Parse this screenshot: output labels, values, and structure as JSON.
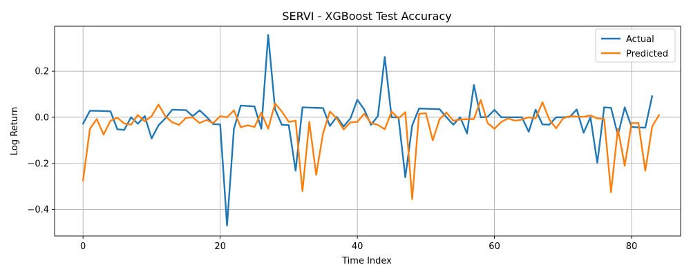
{
  "chart_data": {
    "type": "line",
    "title": "SERVI - XGBoost Test Accuracy",
    "xlabel": "Time Index",
    "ylabel": "Log Return",
    "xlim": [
      -4.15,
      87.15
    ],
    "ylim": [
      -0.515,
      0.395
    ],
    "xticks": [
      0,
      20,
      40,
      60,
      80
    ],
    "yticks": [
      -0.4,
      -0.2,
      0.0,
      0.2
    ],
    "ytick_labels": [
      "−0.4",
      "−0.2",
      "0.0",
      "0.2"
    ],
    "grid": true,
    "legend_position": "top-right",
    "series": [
      {
        "name": "Actual",
        "color": "#1f77b4",
        "values": [
          -0.028,
          0.028,
          0.028,
          0.027,
          0.026,
          -0.052,
          -0.055,
          0.0,
          -0.028,
          0.005,
          -0.092,
          -0.035,
          -0.005,
          0.033,
          0.032,
          0.031,
          0.005,
          0.03,
          0.002,
          -0.03,
          -0.031,
          -0.47,
          -0.05,
          0.051,
          0.049,
          0.047,
          -0.05,
          0.357,
          0.035,
          -0.033,
          -0.034,
          -0.232,
          0.043,
          0.042,
          0.041,
          0.04,
          -0.038,
          0.002,
          -0.04,
          -0.005,
          0.076,
          0.034,
          -0.033,
          0.005,
          0.262,
          0.0,
          0.0,
          -0.26,
          -0.035,
          0.038,
          0.037,
          0.036,
          0.035,
          0.0,
          -0.032,
          0.0,
          -0.07,
          0.14,
          0.0,
          0.002,
          0.032,
          0.0,
          0.0,
          0.0,
          0.0,
          -0.063,
          0.033,
          -0.031,
          -0.032,
          0.0,
          0.0,
          0.002,
          0.034,
          -0.067,
          0.0,
          -0.198,
          0.043,
          0.041,
          -0.078,
          0.043,
          -0.042,
          -0.044,
          -0.045,
          0.092
        ]
      },
      {
        "name": "Predicted",
        "color": "#ff7f0e",
        "values": [
          -0.275,
          -0.05,
          -0.008,
          -0.075,
          -0.015,
          -0.002,
          -0.027,
          -0.032,
          0.01,
          -0.018,
          0.005,
          0.055,
          0.005,
          -0.022,
          -0.033,
          -0.003,
          0.0,
          -0.025,
          -0.012,
          -0.025,
          0.005,
          0.0,
          0.03,
          -0.043,
          -0.035,
          -0.042,
          0.02,
          -0.05,
          0.06,
          0.025,
          -0.02,
          -0.015,
          -0.32,
          -0.02,
          -0.25,
          -0.07,
          0.025,
          -0.005,
          -0.053,
          -0.022,
          -0.02,
          0.015,
          -0.025,
          -0.033,
          -0.052,
          0.025,
          -0.005,
          0.022,
          -0.355,
          0.015,
          0.018,
          -0.1,
          -0.008,
          0.02,
          -0.015,
          -0.01,
          -0.008,
          -0.008,
          0.075,
          -0.025,
          -0.05,
          -0.02,
          -0.005,
          -0.015,
          -0.01,
          0.0,
          -0.005,
          0.065,
          -0.01,
          -0.048,
          -0.005,
          0.005,
          0.003,
          0.002,
          0.008,
          -0.005,
          -0.007,
          -0.325,
          -0.05,
          -0.21,
          -0.025,
          -0.025,
          -0.232,
          -0.04,
          0.01
        ]
      }
    ]
  }
}
